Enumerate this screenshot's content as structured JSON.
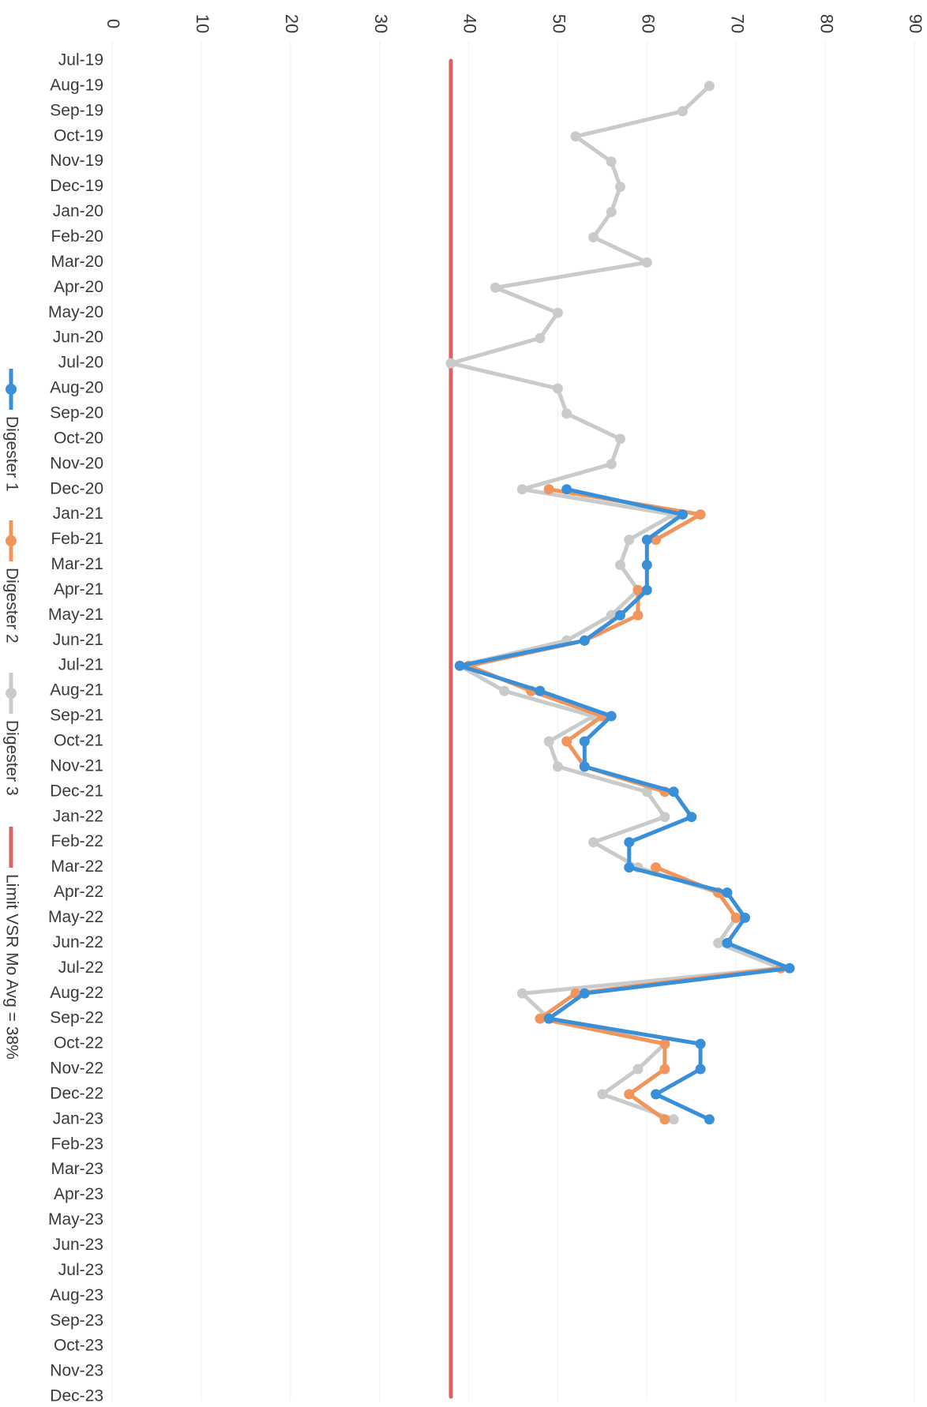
{
  "chart_data": {
    "type": "line",
    "title": "",
    "xlabel": "",
    "ylabel": "",
    "ylim": [
      0,
      90
    ],
    "yticks": [
      0,
      10,
      20,
      30,
      40,
      50,
      60,
      70,
      80,
      90
    ],
    "grid": true,
    "orientation": "rotated-90-clockwise",
    "legend_position": "bottom",
    "categories": [
      "Jul-19",
      "Aug-19",
      "Sep-19",
      "Oct-19",
      "Nov-19",
      "Dec-19",
      "Jan-20",
      "Feb-20",
      "Mar-20",
      "Apr-20",
      "May-20",
      "Jun-20",
      "Jul-20",
      "Aug-20",
      "Sep-20",
      "Oct-20",
      "Nov-20",
      "Dec-20",
      "Jan-21",
      "Feb-21",
      "Mar-21",
      "Apr-21",
      "May-21",
      "Jun-21",
      "Jul-21",
      "Aug-21",
      "Sep-21",
      "Oct-21",
      "Nov-21",
      "Dec-21",
      "Jan-22",
      "Feb-22",
      "Mar-22",
      "Apr-22",
      "May-22",
      "Jun-22",
      "Jul-22",
      "Aug-22",
      "Sep-22",
      "Oct-22",
      "Nov-22",
      "Dec-22",
      "Jan-23",
      "Feb-23",
      "Mar-23",
      "Apr-23",
      "May-23",
      "Jun-23",
      "Jul-23",
      "Aug-23",
      "Sep-23",
      "Oct-23",
      "Nov-23",
      "Dec-23"
    ],
    "series": [
      {
        "name": "Digester 1",
        "color": "#3a8fd9",
        "marker": "circle",
        "values": [
          null,
          null,
          null,
          null,
          null,
          null,
          null,
          null,
          null,
          null,
          null,
          null,
          null,
          null,
          null,
          null,
          null,
          51,
          64,
          60,
          60,
          60,
          57,
          53,
          39,
          48,
          56,
          53,
          53,
          63,
          65,
          58,
          58,
          69,
          71,
          69,
          76,
          53,
          49,
          66,
          66,
          61,
          67,
          null,
          null,
          null,
          null,
          null,
          null,
          null,
          null,
          null,
          null,
          null
        ]
      },
      {
        "name": "Digester 2",
        "color": "#f0955b",
        "marker": "circle",
        "values": [
          null,
          null,
          null,
          null,
          null,
          null,
          null,
          null,
          null,
          null,
          null,
          null,
          null,
          null,
          null,
          null,
          null,
          49,
          66,
          61,
          null,
          59,
          59,
          53,
          40,
          47,
          55,
          51,
          53,
          62,
          null,
          null,
          61,
          68,
          70,
          null,
          75,
          52,
          48,
          62,
          62,
          58,
          62,
          null,
          null,
          null,
          null,
          null,
          null,
          null,
          null,
          null,
          null,
          null
        ]
      },
      {
        "name": "Digester 3",
        "color": "#c9cbca",
        "marker": "circle",
        "values": [
          null,
          67,
          64,
          52,
          56,
          57,
          56,
          54,
          60,
          43,
          50,
          48,
          38,
          50,
          51,
          57,
          56,
          46,
          63,
          58,
          57,
          59,
          56,
          51,
          39,
          44,
          54,
          49,
          50,
          60,
          62,
          54,
          59,
          68,
          70,
          68,
          75,
          46,
          49,
          62,
          59,
          55,
          63,
          null,
          null,
          null,
          null,
          null,
          null,
          null,
          null,
          null,
          null,
          null
        ]
      },
      {
        "name": "Limit VSR Mo Avg = 38%",
        "color": "#d96464",
        "marker": "none",
        "constant": 38,
        "values": [
          38,
          38,
          38,
          38,
          38,
          38,
          38,
          38,
          38,
          38,
          38,
          38,
          38,
          38,
          38,
          38,
          38,
          38,
          38,
          38,
          38,
          38,
          38,
          38,
          38,
          38,
          38,
          38,
          38,
          38,
          38,
          38,
          38,
          38,
          38,
          38,
          38,
          38,
          38,
          38,
          38,
          38,
          38,
          38,
          38,
          38,
          38,
          38,
          38,
          38,
          38,
          38,
          38,
          38
        ]
      }
    ]
  }
}
